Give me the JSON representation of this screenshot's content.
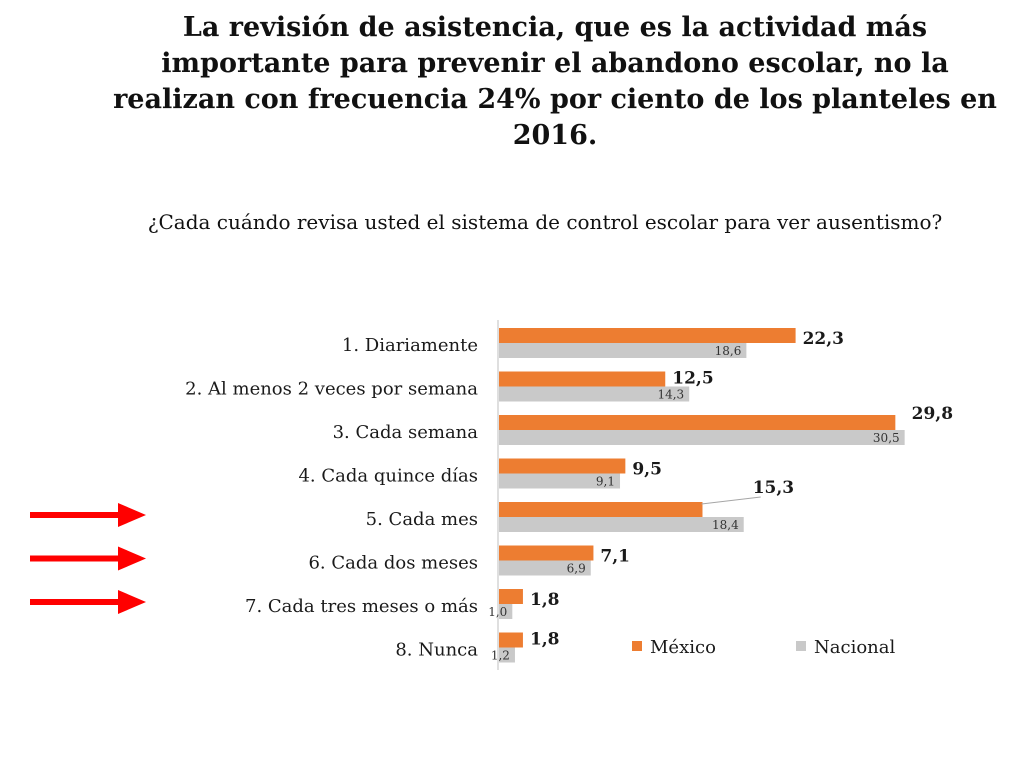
{
  "title": "La revisión de asistencia, que es la actividad más importante para prevenir el abandono escolar, no la realizan con frecuencia 24% por ciento de los planteles en 2016.",
  "question": "¿Cada cuándo revisa usted el sistema de control escolar para ver ausentismo?",
  "colors": {
    "mexico": "#ED7D31",
    "nacional": "#C9C9C9",
    "arrow": "#FF0000"
  },
  "arrow_icon": "arrow-right-icon",
  "highlighted_categories": [
    "5. Cada mes",
    "6. Cada dos meses",
    "7. Cada tres meses o más"
  ],
  "chart_data": {
    "type": "bar",
    "orientation": "horizontal",
    "categories": [
      "1. Diariamente",
      "2. Al menos 2 veces por semana",
      "3. Cada semana",
      "4. Cada quince días",
      "5. Cada mes",
      "6. Cada dos meses",
      "7. Cada tres meses o más",
      "8. Nunca"
    ],
    "series": [
      {
        "name": "México",
        "values": [
          22.3,
          12.5,
          29.8,
          9.5,
          15.3,
          7.1,
          1.8,
          1.8
        ],
        "labels": [
          "22,3",
          "12,5",
          "29,8",
          "9,5",
          "15,3",
          "7,1",
          "1,8",
          "1,8"
        ]
      },
      {
        "name": "Nacional",
        "values": [
          18.6,
          14.3,
          30.5,
          9.1,
          18.4,
          6.9,
          1.0,
          1.2
        ],
        "labels": [
          "18,6",
          "14,3",
          "30,5",
          "9,1",
          "18,4",
          "6,9",
          "1,0",
          "1,2"
        ]
      }
    ],
    "xlim": [
      0,
      31
    ],
    "grid": false,
    "legend": "bottom-right"
  }
}
